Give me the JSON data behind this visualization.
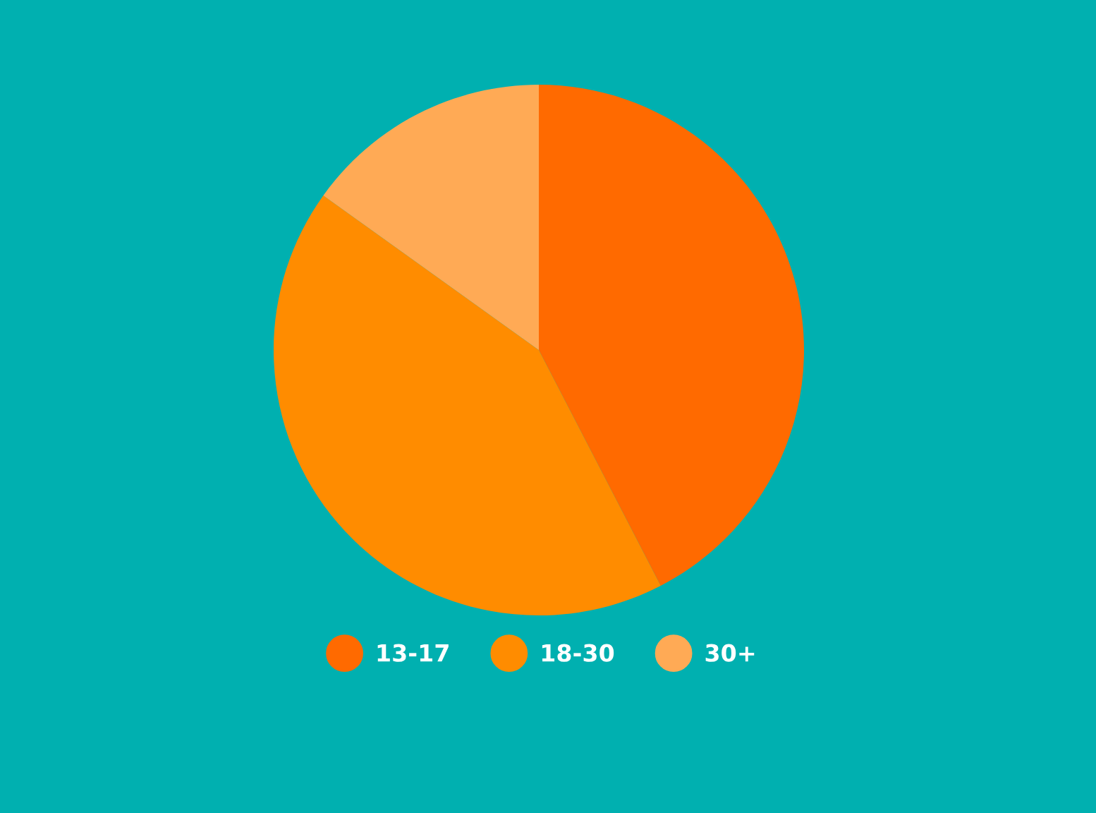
{
  "chart_data": {
    "type": "pie",
    "categories": [
      "13-17",
      "18-30",
      "30+"
    ],
    "values": [
      42.4,
      42.5,
      15.1
    ],
    "colors": [
      "#ff6a00",
      "#ff8c00",
      "#ffaa55"
    ],
    "legend": "bottom"
  }
}
